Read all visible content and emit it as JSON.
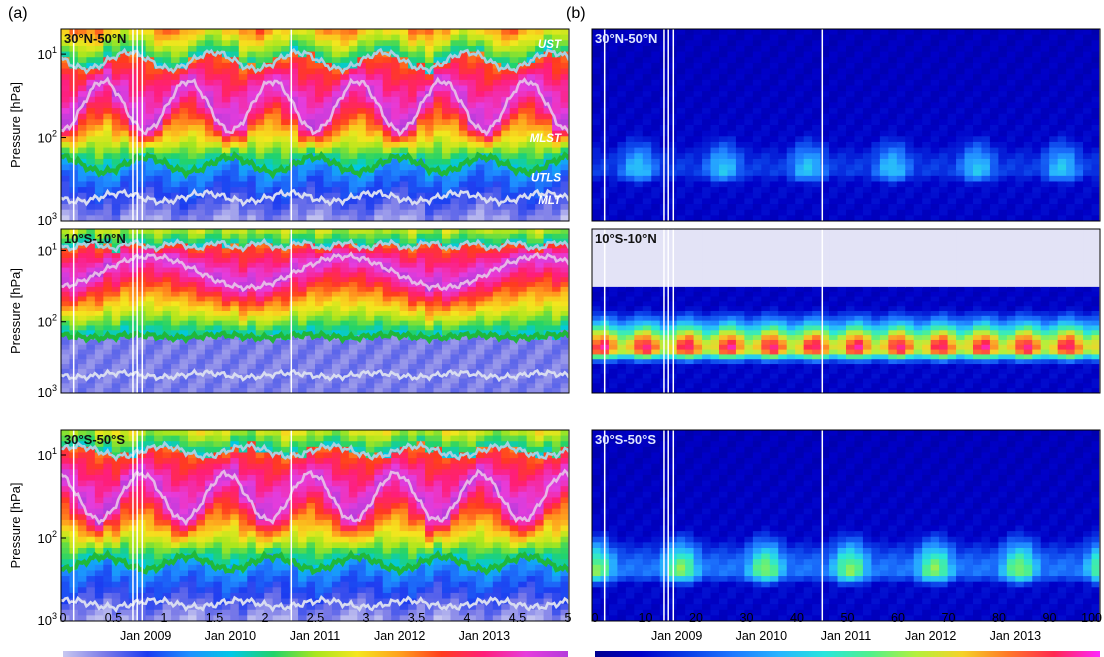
{
  "figure": {
    "panel_labels": [
      "(a)",
      "(b)"
    ]
  },
  "chart_data": [
    {
      "type": "heatmap",
      "panel": "(a)",
      "title": "",
      "ylabel": "Pressure [hPa]",
      "yscale": "log",
      "ylim": [
        1000,
        5
      ],
      "y_ticks": [
        {
          "value": 10,
          "base": "10",
          "exp": "1"
        },
        {
          "value": 100,
          "base": "10",
          "exp": "2"
        },
        {
          "value": 1000,
          "base": "10",
          "exp": "3"
        }
      ],
      "x_range": [
        2008.0,
        2014.0
      ],
      "x_ticks": [
        {
          "value": 2009.0,
          "label": "Jan 2009"
        },
        {
          "value": 2010.0,
          "label": "Jan 2010"
        },
        {
          "value": 2011.0,
          "label": "Jan 2011"
        },
        {
          "value": 2012.0,
          "label": "Jan 2012"
        },
        {
          "value": 2013.0,
          "label": "Jan 2013"
        }
      ],
      "colorbar": {
        "range": [
          0,
          5
        ],
        "tick_labels": [
          "0",
          "0.5",
          "1",
          "1.5",
          "2",
          "2.5",
          "3",
          "3.5",
          "4",
          "4.5",
          "5"
        ]
      },
      "subplots": [
        {
          "region": "30°N-50°N",
          "line_labels": [
            "UST",
            "MLST",
            "UTLS",
            "MLT"
          ],
          "series": [
            {
              "name": "UST",
              "color": "#a9cfe0",
              "mean_hpa": 12,
              "amp_log10": 0.1,
              "period_yr": 1.0,
              "phase": 0.3
            },
            {
              "name": "MLST",
              "color": "#e6b8e6",
              "mean_hpa": 42,
              "amp_log10": 0.3,
              "period_yr": 1.0,
              "phase": 0.0
            },
            {
              "name": "UTLS",
              "color": "#1fb83a",
              "mean_hpa": 210,
              "amp_log10": 0.09,
              "period_yr": 1.0,
              "phase": 0.5
            },
            {
              "name": "MLT",
              "color": "#d8dcf0",
              "mean_hpa": 520,
              "amp_log10": 0.05,
              "period_yr": 1.0,
              "phase": 0.2
            }
          ]
        },
        {
          "region": "10°S-10°N",
          "line_labels": [],
          "series": [
            {
              "name": "UST",
              "color": "#a9cfe0",
              "mean_hpa": 8.5,
              "amp_log10": 0.04,
              "period_yr": 0.5,
              "phase": 0.1
            },
            {
              "name": "MLST",
              "color": "#e6b8e6",
              "mean_hpa": 20,
              "amp_log10": 0.22,
              "period_yr": 2.3,
              "phase": 0.0
            },
            {
              "name": "UTLS",
              "color": "#1fb83a",
              "mean_hpa": 160,
              "amp_log10": 0.02,
              "period_yr": 1.0,
              "phase": 0.4
            },
            {
              "name": "MLT",
              "color": "#d8dcf0",
              "mean_hpa": 560,
              "amp_log10": 0.03,
              "period_yr": 1.0,
              "phase": 0.2
            }
          ]
        },
        {
          "region": "30°S-50°S",
          "line_labels": [],
          "series": [
            {
              "name": "UST",
              "color": "#a9cfe0",
              "mean_hpa": 9,
              "amp_log10": 0.06,
              "period_yr": 1.0,
              "phase": 0.7
            },
            {
              "name": "MLST",
              "color": "#e6b8e6",
              "mean_hpa": 32,
              "amp_log10": 0.28,
              "period_yr": 1.0,
              "phase": 0.45
            },
            {
              "name": "UTLS",
              "color": "#1fb83a",
              "mean_hpa": 200,
              "amp_log10": 0.08,
              "period_yr": 1.0,
              "phase": 0.0
            },
            {
              "name": "MLT",
              "color": "#d8dcf0",
              "mean_hpa": 620,
              "amp_log10": 0.04,
              "period_yr": 1.0,
              "phase": 0.6
            }
          ]
        }
      ]
    },
    {
      "type": "heatmap",
      "panel": "(b)",
      "title": "",
      "yscale": "log",
      "ylim": [
        1000,
        5
      ],
      "x_range": [
        2008.0,
        2014.0
      ],
      "x_ticks": [
        {
          "value": 2009.0,
          "label": "Jan 2009"
        },
        {
          "value": 2010.0,
          "label": "Jan 2010"
        },
        {
          "value": 2011.0,
          "label": "Jan 2011"
        },
        {
          "value": 2012.0,
          "label": "Jan 2012"
        },
        {
          "value": 2013.0,
          "label": "Jan 2013"
        }
      ],
      "colorbar": {
        "range": [
          0,
          100
        ],
        "tick_labels": [
          "0",
          "10",
          "20",
          "30",
          "40",
          "50",
          "60",
          "70",
          "80",
          "90",
          "100"
        ]
      },
      "subplots": [
        {
          "region": "30°N-50°N",
          "peak_hpa": 250,
          "peak_value": 40
        },
        {
          "region": "10°S-10°N",
          "peak_hpa": 240,
          "peak_value": 95,
          "no_data_above_hpa": 35
        },
        {
          "region": "30°S-50°S",
          "peak_hpa": 250,
          "peak_value": 60
        }
      ]
    }
  ],
  "colors": {
    "heatmap_a": [
      "#c8c8f0",
      "#7a7ae8",
      "#1c3cf0",
      "#1e90ff",
      "#00c8e6",
      "#22d36a",
      "#a8e61e",
      "#f5e61e",
      "#ffa01e",
      "#ff3c1e",
      "#ff1e78",
      "#e63cdc",
      "#b43cdc"
    ],
    "heatmap_b": [
      "#00008f",
      "#0000c8",
      "#0a3ce6",
      "#1e78ff",
      "#28b4ff",
      "#28e6dc",
      "#50f08c",
      "#b4f03c",
      "#f5d228",
      "#ff7828",
      "#ff2850",
      "#ff28ff"
    ],
    "no_data": "#e3e3f6"
  }
}
